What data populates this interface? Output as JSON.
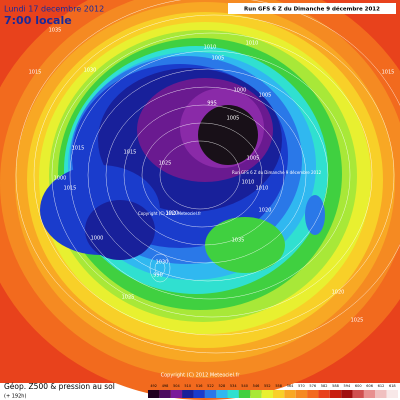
{
  "header": {
    "date": "Lundi 17 decembre 2012",
    "time": "7:00 locale"
  },
  "run_info": "Run GFS 6 Z du Dimanche 9 décembre 2012",
  "center_run_info": "Run GFS 6 Z du Dimanche 9 décembre 2012",
  "copyright": "Copyright (C) 2012 Meteociel.fr",
  "center_copyright": "Copyright (C) 2012 Meteociel.fr",
  "footer": {
    "title": "Géop. Z500 & pression au sol",
    "lead": "(+ 192h)"
  },
  "colorbar": {
    "ticks": [
      492,
      498,
      504,
      510,
      516,
      522,
      528,
      534,
      540,
      546,
      552,
      558,
      564,
      570,
      576,
      582,
      588,
      594,
      600,
      606,
      612,
      618
    ]
  },
  "isobar_labels": [
    "1035",
    "1015",
    "1015",
    "1030",
    "1010",
    "1005",
    "1010",
    "1000",
    "1005",
    "995",
    "1005",
    "1005",
    "1015",
    "1015",
    "1025",
    "1000",
    "1015",
    "1010",
    "1010",
    "1020",
    "1020",
    "1030",
    "1035",
    "1025",
    "1020",
    "990",
    "1025",
    "1000"
  ]
}
